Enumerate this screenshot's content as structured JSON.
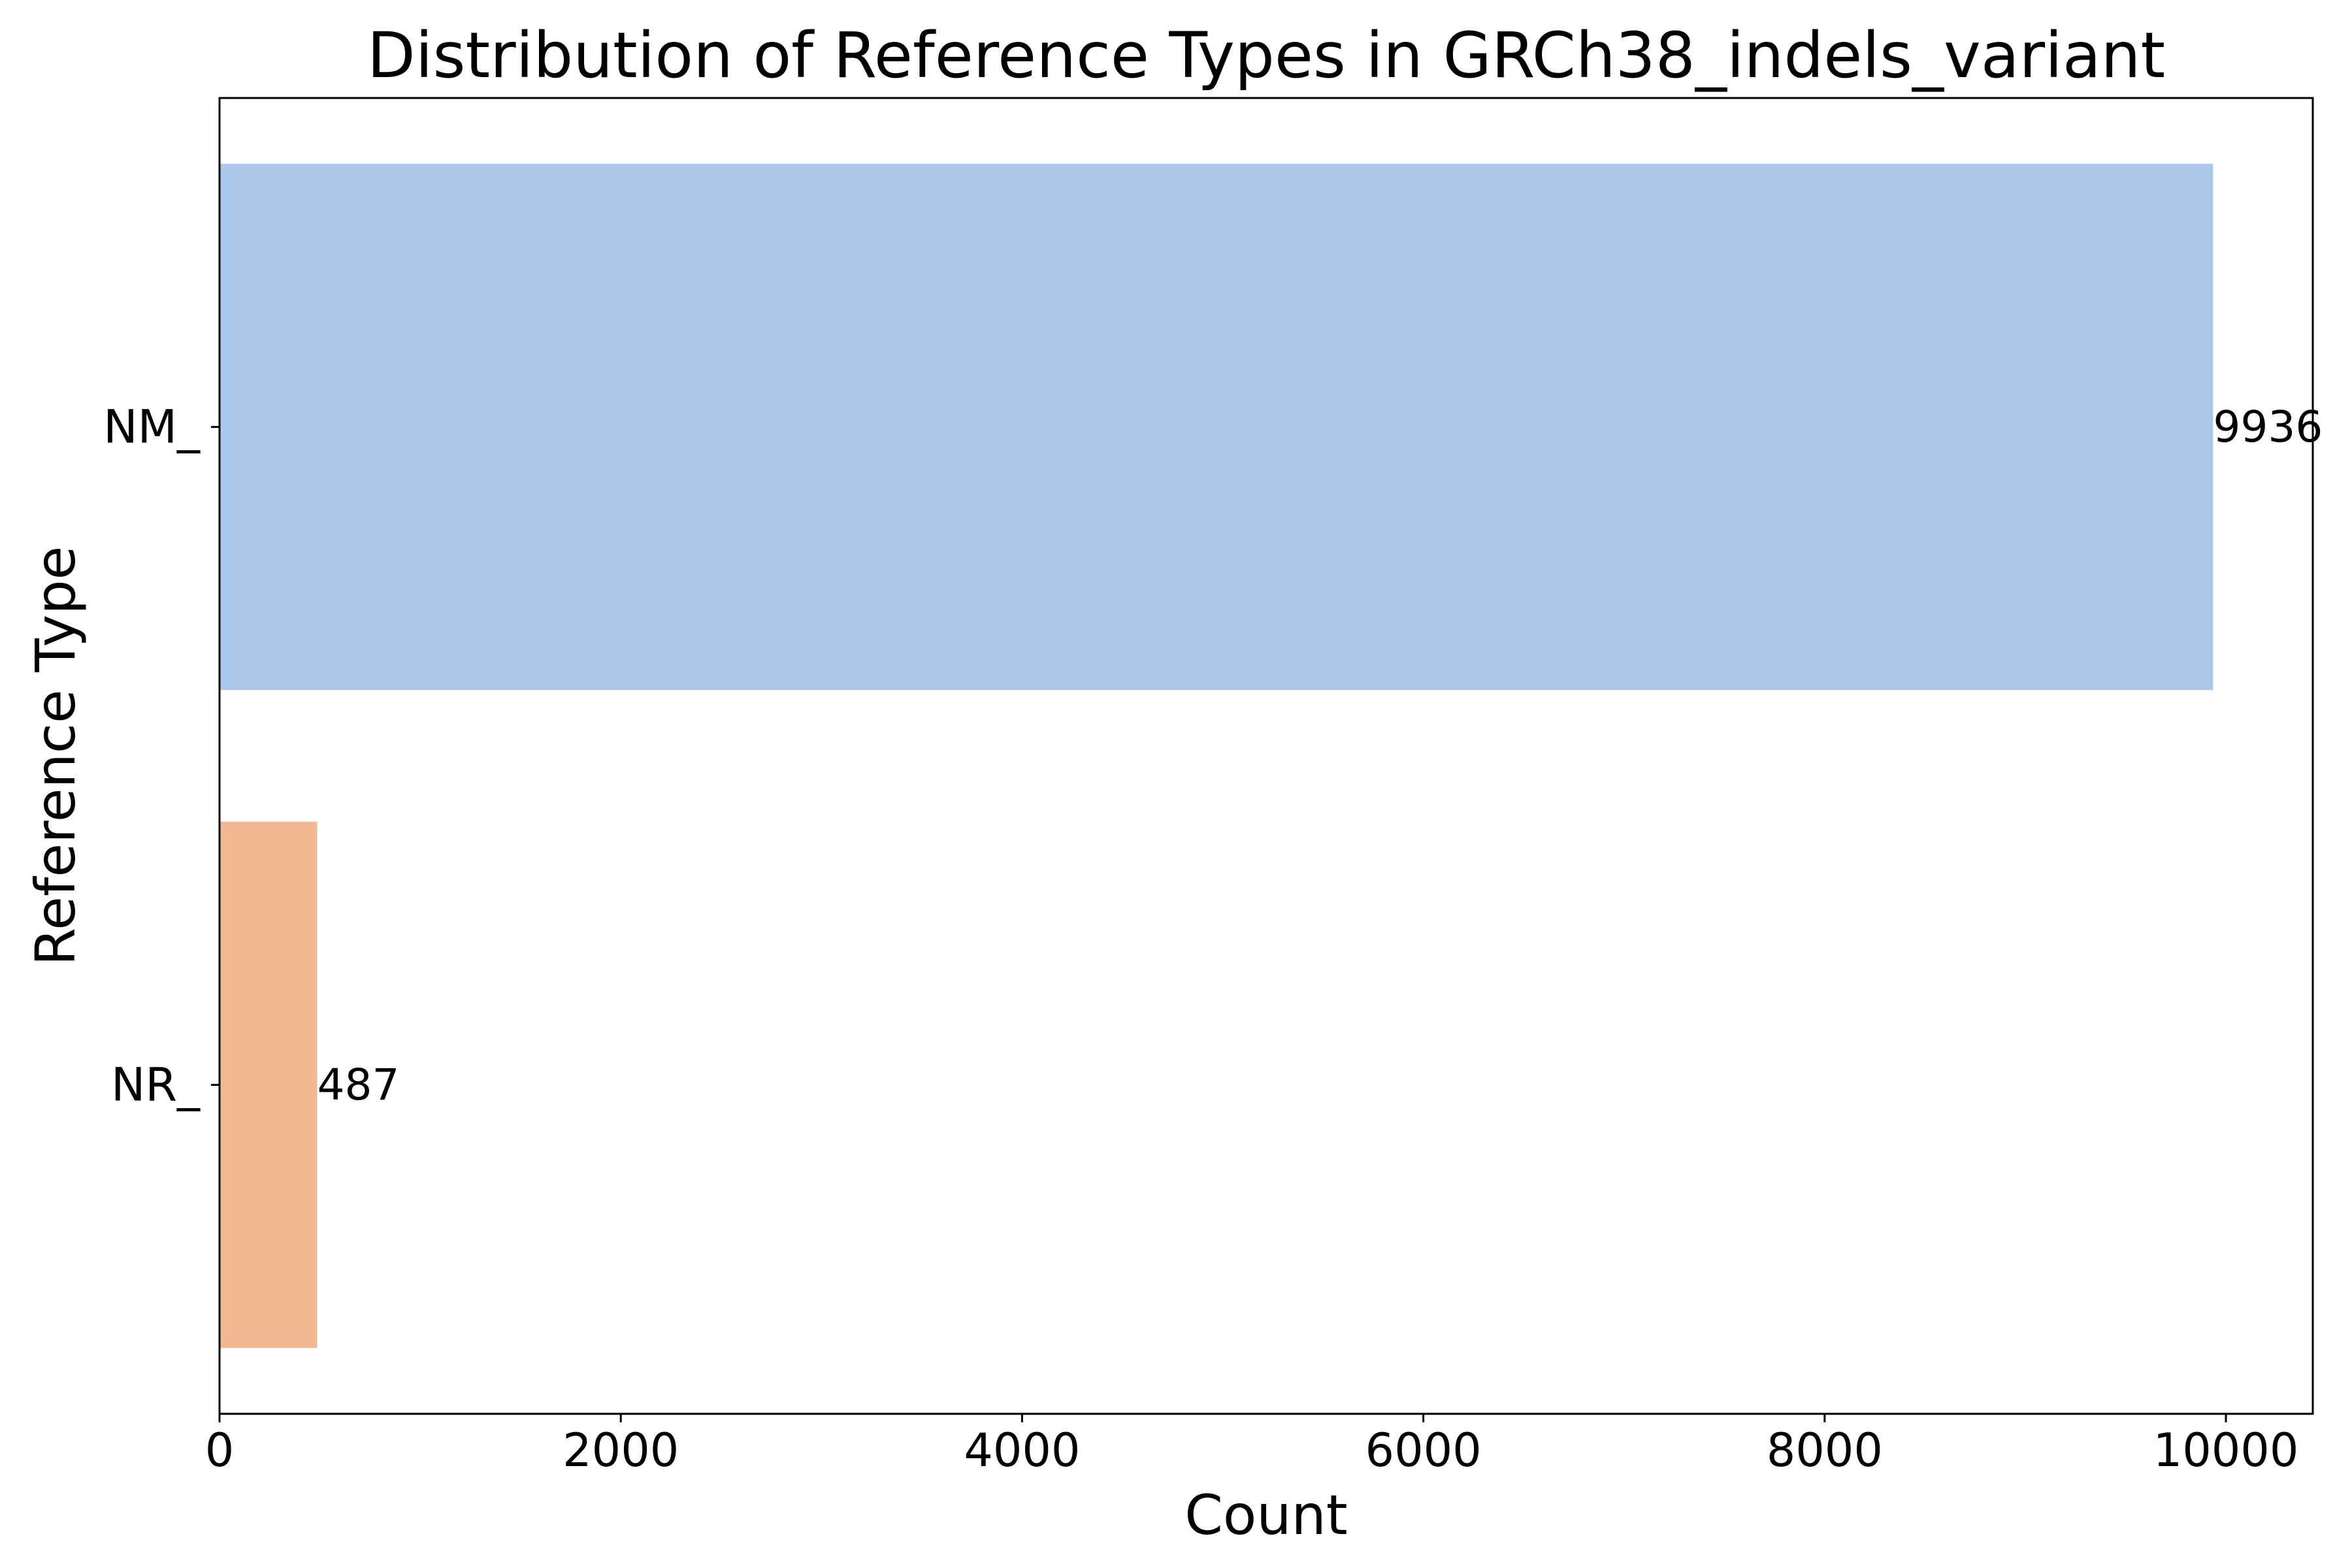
{
  "chart_data": {
    "type": "bar",
    "orientation": "horizontal",
    "title": "Distribution of Reference Types in GRCh38_indels_variant",
    "xlabel": "Count",
    "ylabel": "Reference Type",
    "categories": [
      "NM_",
      "NR_"
    ],
    "values": [
      9936,
      487
    ],
    "data_labels": [
      "9936",
      "487"
    ],
    "colors": [
      "#abc8eb",
      "#f0b994"
    ],
    "xlim": [
      0,
      10433
    ],
    "xticks": [
      0,
      2000,
      4000,
      6000,
      8000,
      10000
    ],
    "xtick_labels": [
      "0",
      "2000",
      "4000",
      "6000",
      "8000",
      "10000"
    ],
    "grid": false,
    "legend": "none"
  }
}
